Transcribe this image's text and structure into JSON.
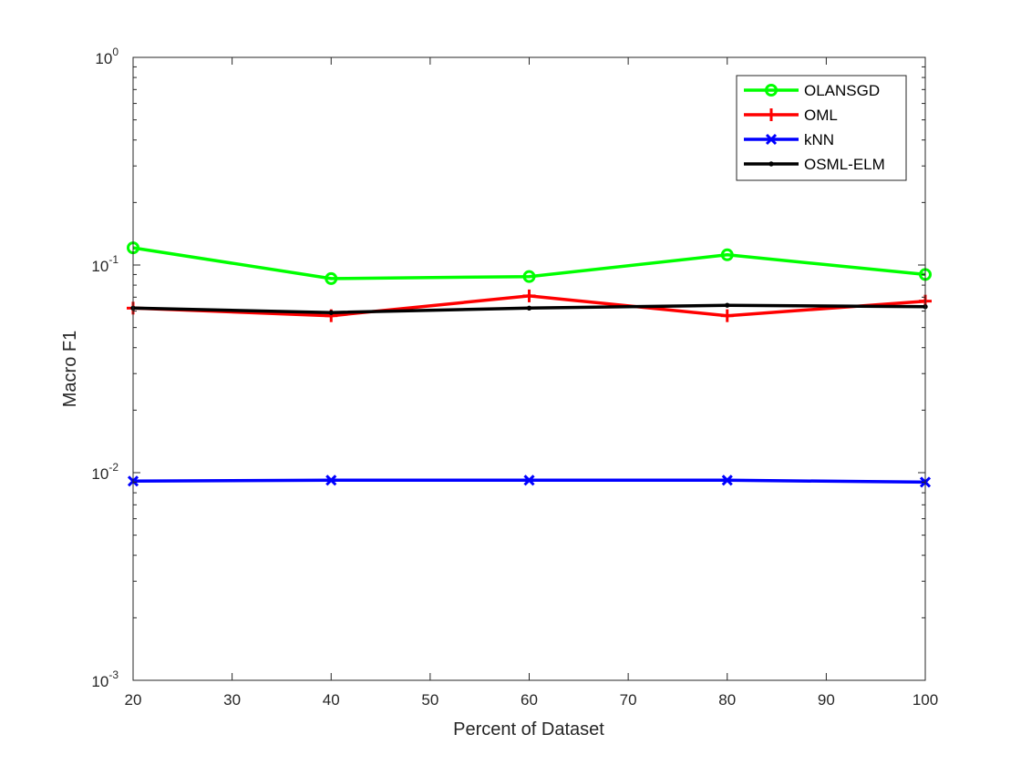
{
  "chart_data": {
    "type": "line",
    "xlabel": "Percent of Dataset",
    "ylabel": "Macro F1",
    "xlim": [
      20,
      100
    ],
    "ylim": [
      0.001,
      1
    ],
    "yscale": "log",
    "x_ticks": [
      20,
      30,
      40,
      50,
      60,
      70,
      80,
      90,
      100
    ],
    "y_ticks": [
      {
        "value": 0.001,
        "base": "10",
        "exp": "-3"
      },
      {
        "value": 0.01,
        "base": "10",
        "exp": "-2"
      },
      {
        "value": 0.1,
        "base": "10",
        "exp": "-1"
      },
      {
        "value": 1,
        "base": "10",
        "exp": "0"
      }
    ],
    "grid": false,
    "legend_position": "top-right",
    "x": [
      20,
      40,
      60,
      80,
      100
    ],
    "series": [
      {
        "name": "OLANSGD",
        "color": "#00ff00",
        "marker": "circle",
        "values": [
          0.121,
          0.086,
          0.088,
          0.112,
          0.09
        ]
      },
      {
        "name": "OML",
        "color": "#ff0000",
        "marker": "plus",
        "values": [
          0.062,
          0.057,
          0.071,
          0.057,
          0.067
        ]
      },
      {
        "name": "kNN",
        "color": "#0000ff",
        "marker": "x",
        "values": [
          0.0091,
          0.0092,
          0.0092,
          0.0092,
          0.009
        ]
      },
      {
        "name": "OSML-ELM",
        "color": "#000000",
        "marker": "point",
        "values": [
          0.062,
          0.059,
          0.062,
          0.064,
          0.063
        ]
      }
    ]
  }
}
